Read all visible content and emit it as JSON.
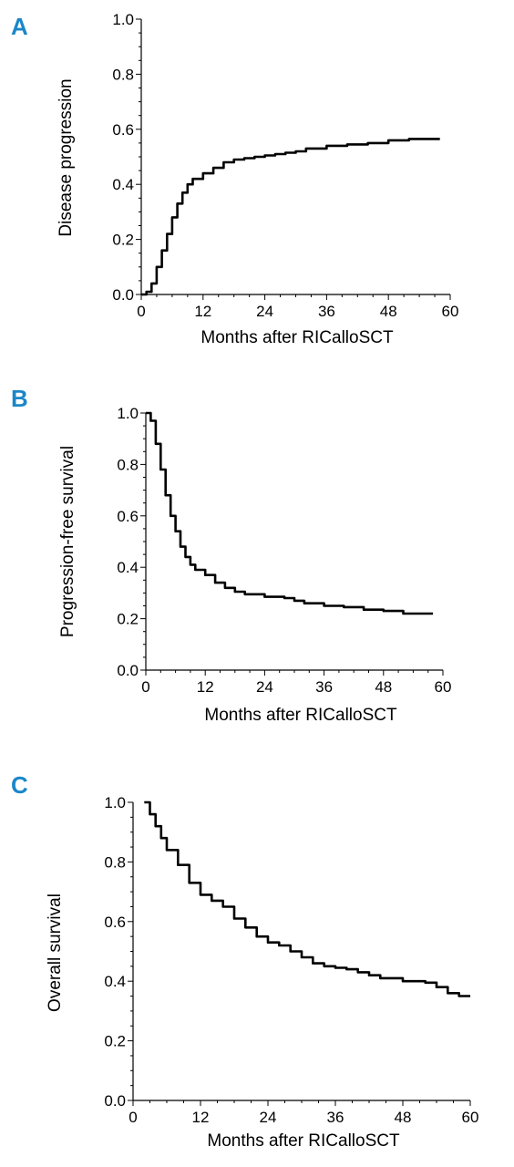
{
  "figure": {
    "panel_color": "#1a87c8",
    "line_color": "#000000"
  },
  "chart_data": [
    {
      "panel": "A",
      "type": "line",
      "xlabel": "Months after RICalloSCT",
      "ylabel": "Disease progression",
      "xlim": [
        0,
        60
      ],
      "ylim": [
        0,
        1
      ],
      "xticks": [
        0,
        12,
        24,
        36,
        48,
        60
      ],
      "yticks": [
        0.0,
        0.2,
        0.4,
        0.6,
        0.8,
        1.0
      ],
      "series": [
        {
          "x": [
            0,
            1,
            2,
            3,
            4,
            5,
            6,
            7,
            8,
            9,
            10,
            12,
            14,
            16,
            18,
            20,
            22,
            24,
            26,
            28,
            30,
            32,
            36,
            40,
            44,
            48,
            52,
            58
          ],
          "y": [
            0.0,
            0.01,
            0.04,
            0.1,
            0.16,
            0.22,
            0.28,
            0.33,
            0.37,
            0.4,
            0.42,
            0.44,
            0.46,
            0.48,
            0.49,
            0.495,
            0.5,
            0.505,
            0.51,
            0.515,
            0.52,
            0.53,
            0.54,
            0.545,
            0.55,
            0.56,
            0.565,
            0.565
          ]
        }
      ]
    },
    {
      "panel": "B",
      "type": "line",
      "xlabel": "Months after RICalloSCT",
      "ylabel": "Progression-free survival",
      "xlim": [
        0,
        60
      ],
      "ylim": [
        0,
        1
      ],
      "xticks": [
        0,
        12,
        24,
        36,
        48,
        60
      ],
      "yticks": [
        0.0,
        0.2,
        0.4,
        0.6,
        0.8,
        1.0
      ],
      "series": [
        {
          "x": [
            0,
            1,
            2,
            3,
            4,
            5,
            6,
            7,
            8,
            9,
            10,
            12,
            14,
            16,
            18,
            20,
            24,
            28,
            30,
            32,
            36,
            40,
            44,
            48,
            52,
            58
          ],
          "y": [
            1.0,
            0.97,
            0.88,
            0.78,
            0.68,
            0.6,
            0.54,
            0.48,
            0.44,
            0.41,
            0.39,
            0.37,
            0.34,
            0.32,
            0.305,
            0.295,
            0.285,
            0.28,
            0.27,
            0.26,
            0.25,
            0.245,
            0.235,
            0.23,
            0.22,
            0.22
          ]
        }
      ]
    },
    {
      "panel": "C",
      "type": "line",
      "xlabel": "Months after RICalloSCT",
      "ylabel": "Overall survival",
      "xlim": [
        0,
        60
      ],
      "ylim": [
        0,
        1
      ],
      "xticks": [
        0,
        12,
        24,
        36,
        48,
        60
      ],
      "yticks": [
        0.0,
        0.2,
        0.4,
        0.6,
        0.8,
        1.0
      ],
      "series": [
        {
          "x": [
            2,
            3,
            4,
            5,
            6,
            8,
            10,
            12,
            14,
            16,
            18,
            20,
            22,
            24,
            26,
            28,
            30,
            32,
            34,
            36,
            38,
            40,
            42,
            44,
            48,
            52,
            54,
            56,
            58,
            60
          ],
          "y": [
            1.0,
            0.96,
            0.92,
            0.88,
            0.84,
            0.79,
            0.73,
            0.69,
            0.67,
            0.65,
            0.61,
            0.58,
            0.55,
            0.53,
            0.52,
            0.5,
            0.48,
            0.46,
            0.45,
            0.445,
            0.44,
            0.43,
            0.42,
            0.41,
            0.4,
            0.395,
            0.38,
            0.36,
            0.35,
            0.35
          ]
        }
      ]
    }
  ]
}
